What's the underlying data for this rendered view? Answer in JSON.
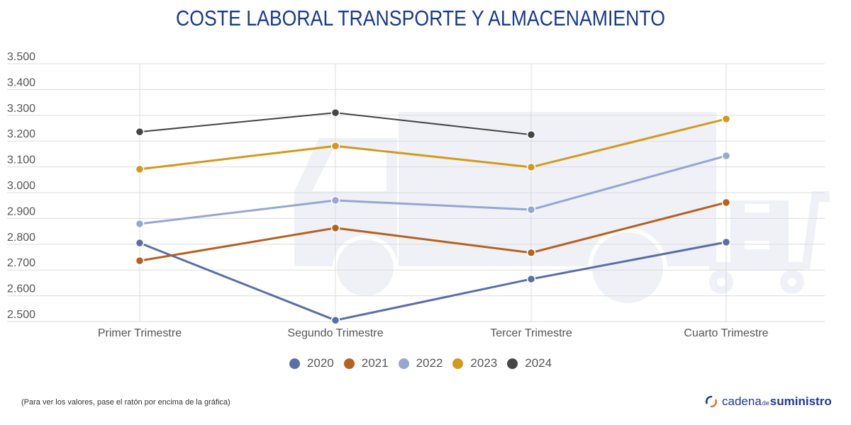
{
  "chart_data": {
    "type": "line",
    "title": "COSTE LABORAL TRANSPORTE Y ALMACENAMIENTO",
    "xlabel": "",
    "ylabel": "",
    "categories": [
      "Primer Trimestre",
      "Segundo Trimestre",
      "Tercer Trimestre",
      "Cuarto Trimestre"
    ],
    "ylim": [
      2500,
      3500
    ],
    "yticks": [
      "2.500",
      "2.600",
      "2.700",
      "2.800",
      "2.900",
      "3.000",
      "3.100",
      "3.200",
      "3.300",
      "3.400",
      "3.500"
    ],
    "ytick_values": [
      2500,
      2600,
      2700,
      2800,
      2900,
      3000,
      3100,
      3200,
      3300,
      3400,
      3500
    ],
    "grid": true,
    "legend_position": "bottom",
    "series": [
      {
        "name": "2020",
        "color": "#5b6ea6",
        "values": [
          2805,
          2505,
          2665,
          2808
        ]
      },
      {
        "name": "2021",
        "color": "#b5611f",
        "values": [
          2736,
          2863,
          2767,
          2962
        ]
      },
      {
        "name": "2022",
        "color": "#98a6d0",
        "values": [
          2879,
          2970,
          2934,
          3143
        ]
      },
      {
        "name": "2023",
        "color": "#d19a1b",
        "values": [
          3091,
          3181,
          3099,
          3286
        ]
      },
      {
        "name": "2024",
        "color": "#454545",
        "values": [
          3236,
          3310,
          3225,
          null
        ]
      }
    ]
  },
  "footer": {
    "note": "(Para ver los valores, pase el ratón por encima de la gráfica)",
    "brand_part1": "cadena",
    "brand_part2": "de",
    "brand_part3": "suministro"
  }
}
